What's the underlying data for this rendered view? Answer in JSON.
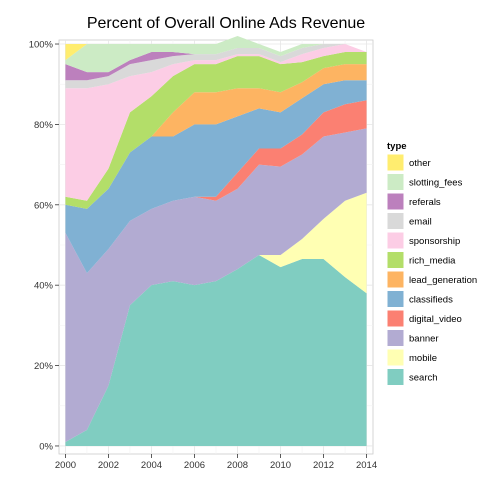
{
  "chart_data": {
    "type": "area",
    "stacked": true,
    "title": "Percent of Overall Online Ads Revenue",
    "xlabel": "",
    "ylabel": "",
    "x": [
      2000,
      2001,
      2002,
      2003,
      2004,
      2005,
      2006,
      2007,
      2008,
      2009,
      2010,
      2011,
      2012,
      2013,
      2014
    ],
    "xticks": [
      "2000",
      "2002",
      "2004",
      "2006",
      "2008",
      "2010",
      "2012",
      "2014"
    ],
    "xlim": [
      1999.7,
      2014.3
    ],
    "ylim": [
      -2,
      101
    ],
    "yticks": [
      "0%",
      "20%",
      "40%",
      "60%",
      "80%",
      "100%"
    ],
    "grid": true,
    "legend": {
      "title": "type",
      "position": "right"
    },
    "series": [
      {
        "name": "search",
        "color": "#80CDC1",
        "values": [
          1,
          4,
          15,
          35,
          40,
          41,
          40,
          41,
          44,
          47.5,
          44.5,
          46.5,
          46.5,
          42,
          38
        ]
      },
      {
        "name": "mobile",
        "color": "#FFFFB3",
        "values": [
          0,
          0,
          0,
          0,
          0,
          0,
          0,
          0,
          0,
          0,
          3,
          5,
          10,
          19,
          25
        ]
      },
      {
        "name": "banner",
        "color": "#B2ABD2",
        "values": [
          52,
          39,
          34,
          21,
          19,
          20,
          22,
          20,
          20,
          22.5,
          22,
          21,
          20.5,
          17,
          16
        ]
      },
      {
        "name": "digital_video",
        "color": "#FB8072",
        "values": [
          0,
          0,
          0,
          0,
          0,
          0,
          0,
          1,
          4,
          4,
          4.5,
          5,
          6,
          7,
          7
        ]
      },
      {
        "name": "classifieds",
        "color": "#80B1D3",
        "values": [
          7,
          16,
          15,
          17,
          18,
          16,
          18,
          18,
          14,
          10,
          9,
          9,
          7,
          6,
          5
        ]
      },
      {
        "name": "lead_generation",
        "color": "#FDB462",
        "values": [
          0,
          0,
          0,
          0,
          0,
          6,
          8,
          8,
          7,
          5,
          5,
          4,
          4,
          4,
          4
        ]
      },
      {
        "name": "rich_media",
        "color": "#B3DE69",
        "values": [
          2,
          2,
          5,
          10,
          10,
          9,
          7,
          7,
          8,
          8,
          7,
          5,
          3,
          3,
          3
        ]
      },
      {
        "name": "sponsorship",
        "color": "#FCCDE5",
        "values": [
          27,
          28,
          21,
          9,
          6,
          3,
          1,
          1,
          0.5,
          0.5,
          0.5,
          2,
          2,
          2,
          0
        ]
      },
      {
        "name": "email",
        "color": "#D9D9D9",
        "values": [
          2,
          2,
          2,
          3,
          3,
          2,
          1.5,
          1.5,
          1.5,
          1.5,
          1.5,
          1.5,
          1,
          0,
          0
        ]
      },
      {
        "name": "referals",
        "color": "#BC80BD",
        "values": [
          4,
          2,
          1,
          1,
          2,
          1,
          0,
          0,
          0,
          0,
          0,
          0,
          0,
          0,
          0
        ]
      },
      {
        "name": "slotting_fees",
        "color": "#CCEBC5",
        "values": [
          1,
          7,
          7,
          4,
          2,
          2,
          2.5,
          2.5,
          3,
          1,
          1,
          1,
          0,
          0,
          0
        ]
      },
      {
        "name": "other",
        "color": "#FFED6F",
        "values": [
          4,
          0,
          0,
          0,
          0,
          0,
          0,
          0,
          0,
          0,
          0,
          0,
          0,
          0,
          0
        ]
      }
    ],
    "legend_order": [
      "other",
      "slotting_fees",
      "referals",
      "email",
      "sponsorship",
      "rich_media",
      "lead_generation",
      "classifieds",
      "digital_video",
      "banner",
      "mobile",
      "search"
    ]
  }
}
